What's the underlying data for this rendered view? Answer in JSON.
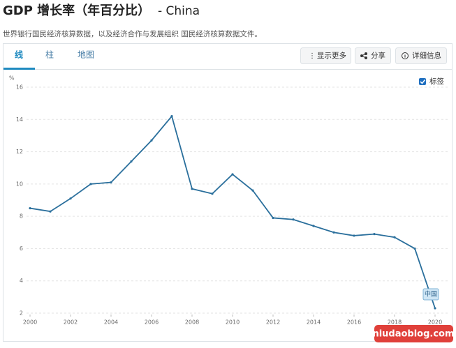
{
  "header": {
    "title": "GDP 增长率（年百分比）",
    "country": "- China",
    "subtitle": "世界银行国民经济核算数据，以及经济合作与发展组织 国民经济核算数据文件。"
  },
  "tabs": [
    "线",
    "柱",
    "地图"
  ],
  "buttons": [
    "显示更多",
    "分享",
    "详细信息"
  ],
  "checkbox_label": "标签",
  "watermark": "niudaoblog.com",
  "chart_data": {
    "type": "line",
    "y_label": "%",
    "x": [
      2000,
      2001,
      2002,
      2003,
      2004,
      2005,
      2006,
      2007,
      2008,
      2009,
      2010,
      2011,
      2012,
      2013,
      2014,
      2015,
      2016,
      2017,
      2018,
      2019,
      2020
    ],
    "series": [
      {
        "name": "中国",
        "color": "#2a6f9c",
        "values": [
          8.5,
          8.3,
          9.1,
          10.0,
          10.1,
          11.4,
          12.7,
          14.2,
          9.7,
          9.4,
          10.6,
          9.6,
          7.9,
          7.8,
          7.4,
          7.0,
          6.8,
          6.9,
          6.7,
          6.0,
          2.3
        ]
      }
    ],
    "xlim": [
      2000,
      2020
    ],
    "xticks": [
      2000,
      2002,
      2004,
      2006,
      2008,
      2010,
      2012,
      2014,
      2016,
      2018,
      2020
    ],
    "ylim": [
      2,
      16
    ],
    "yticks": [
      2,
      4,
      6,
      8,
      10,
      12,
      14,
      16
    ],
    "grid": true
  }
}
